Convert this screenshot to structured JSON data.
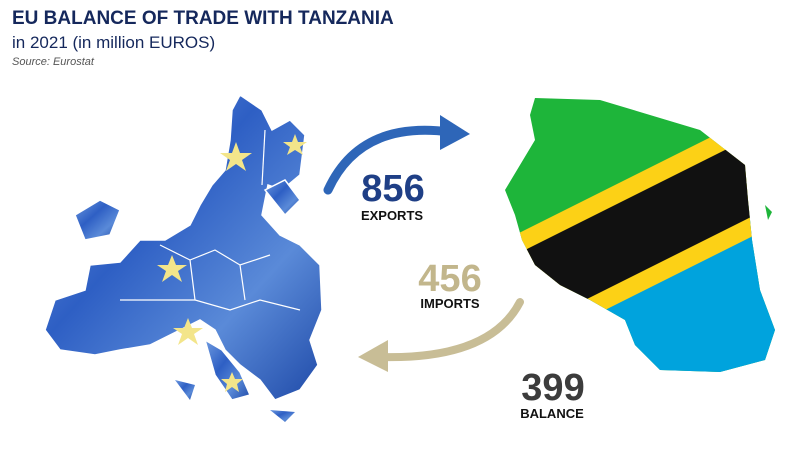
{
  "header": {
    "title": "EU BALANCE OF TRADE WITH TANZANIA",
    "subtitle": "in 2021 (in million EUROS)",
    "source": "Source: Eurostat"
  },
  "figures": [
    {
      "value": 856,
      "label": "EXPORTS"
    },
    {
      "value": 456,
      "label": "IMPORTS"
    },
    {
      "value": 399,
      "label": "BALANCE"
    }
  ]
}
